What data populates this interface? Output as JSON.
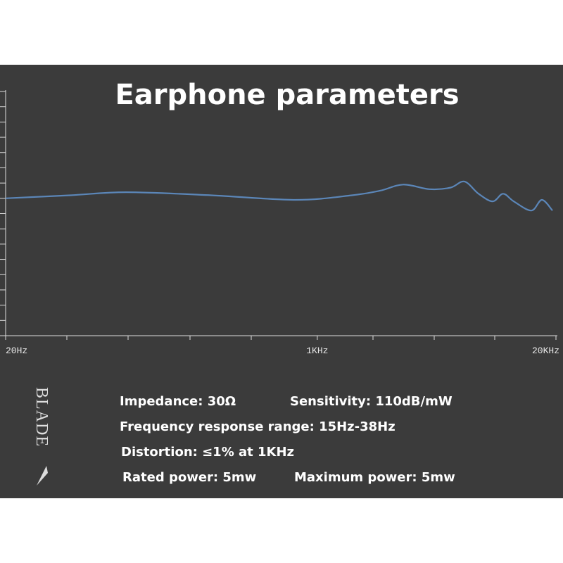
{
  "chart_data": {
    "type": "line",
    "title": "Earphone parameters",
    "x": [
      20,
      45,
      91,
      264,
      762,
      1544,
      2198,
      2940,
      4078,
      5320,
      6340,
      7570,
      9040,
      10300,
      11780,
      14680,
      16760,
      19140
    ],
    "series": [
      {
        "color": "#5b86b8",
        "values": [
          9.0,
          9.2,
          9.4,
          9.2,
          8.9,
          9.2,
          9.5,
          9.9,
          9.6,
          9.7,
          10.1,
          9.3,
          8.8,
          9.3,
          8.8,
          8.2,
          8.9,
          8.2
        ]
      }
    ],
    "xlim": [
      20,
      20000
    ],
    "xscale": "log",
    "xticks": [
      {
        "value": 20,
        "label": "20Hz"
      },
      {
        "value": 1000,
        "label": "1KHz"
      },
      {
        "value": 20000,
        "label": "20KHz"
      }
    ],
    "ylim": [
      0,
      16
    ],
    "yticks": [
      0,
      1,
      2,
      3,
      4,
      5,
      6,
      7,
      8,
      9,
      10,
      11,
      12,
      13,
      14,
      15,
      16
    ]
  },
  "brand": "BLADE",
  "specs": [
    [
      "Impedance: 30Ω",
      "Sensitivity: 110dB/mW"
    ],
    [
      "Frequency response range: 15Hz-38Hz"
    ],
    [
      "Distortion: ≤1% at 1KHz"
    ],
    [
      "Rated power: 5mw",
      "Maximum power: 5mw"
    ]
  ]
}
